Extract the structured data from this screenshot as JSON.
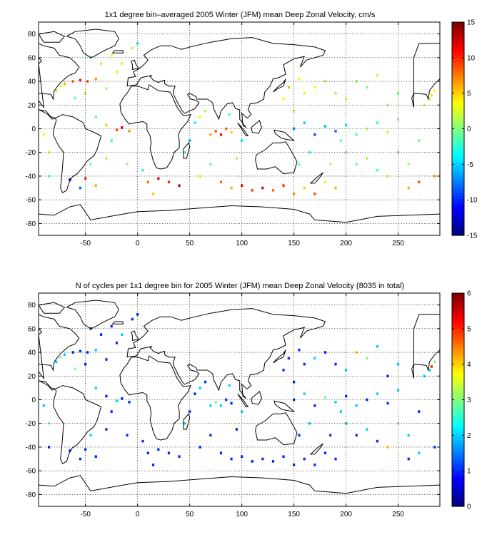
{
  "chart_data": [
    {
      "type": "heatmap",
      "title": "1x1 degree bin–averaged 2005 Winter (JFM) mean Deep Zonal Velocity, cm/s",
      "xlim": [
        -95,
        290
      ],
      "ylim": [
        -90,
        90
      ],
      "x_ticks": [
        "-50",
        "0",
        "50",
        "100",
        "150",
        "200",
        "250"
      ],
      "y_ticks": [
        "80",
        "60",
        "40",
        "20",
        "0",
        "-20",
        "-40",
        "-60",
        "-80"
      ],
      "grid": true,
      "colorbar": {
        "min": -15,
        "max": 15,
        "colormap": "jet",
        "ticks": [
          "15",
          "10",
          "5",
          "0",
          "-5",
          "-10",
          "-15"
        ]
      },
      "cells": [
        {
          "lon": -78,
          "lat": 32,
          "v": 1.5
        },
        {
          "lon": -74,
          "lat": 36,
          "v": 3.0
        },
        {
          "lon": -70,
          "lat": 38,
          "v": 6.0
        },
        {
          "lon": -62,
          "lat": 40,
          "v": 8.0
        },
        {
          "lon": -55,
          "lat": 41,
          "v": 11.0
        },
        {
          "lon": -48,
          "lat": 40,
          "v": 9.0
        },
        {
          "lon": -40,
          "lat": 42,
          "v": 7.0
        },
        {
          "lon": -60,
          "lat": 26,
          "v": -1.0
        },
        {
          "lon": -50,
          "lat": 30,
          "v": 2.0
        },
        {
          "lon": -30,
          "lat": 34,
          "v": 1.0
        },
        {
          "lon": -20,
          "lat": 48,
          "v": 4.0
        },
        {
          "lon": -15,
          "lat": 55,
          "v": 2.5
        },
        {
          "lon": -35,
          "lat": 55,
          "v": 1.5
        },
        {
          "lon": -45,
          "lat": 60,
          "v": -2.0
        },
        {
          "lon": -25,
          "lat": 62,
          "v": 3.0
        },
        {
          "lon": -5,
          "lat": 68,
          "v": 1.0
        },
        {
          "lon": 0,
          "lat": 72,
          "v": -3.0
        },
        {
          "lon": -40,
          "lat": 10,
          "v": -1.5
        },
        {
          "lon": -30,
          "lat": 3,
          "v": 5.0
        },
        {
          "lon": -20,
          "lat": -1,
          "v": 9.0
        },
        {
          "lon": -15,
          "lat": 1,
          "v": 12.0
        },
        {
          "lon": -8,
          "lat": -2,
          "v": 7.0
        },
        {
          "lon": -25,
          "lat": -10,
          "v": -2.0
        },
        {
          "lon": -30,
          "lat": -25,
          "v": 1.0
        },
        {
          "lon": -45,
          "lat": -30,
          "v": -1.0
        },
        {
          "lon": -50,
          "lat": -42,
          "v": 10.0
        },
        {
          "lon": -40,
          "lat": -48,
          "v": 6.0
        },
        {
          "lon": -55,
          "lat": -50,
          "v": -8.0
        },
        {
          "lon": -65,
          "lat": -43,
          "v": -12.0
        },
        {
          "lon": -85,
          "lat": -20,
          "v": 2.0
        },
        {
          "lon": -85,
          "lat": -40,
          "v": -1.0
        },
        {
          "lon": -90,
          "lat": -5,
          "v": 4.0
        },
        {
          "lon": -10,
          "lat": -30,
          "v": 0.5
        },
        {
          "lon": 5,
          "lat": -35,
          "v": -3.0
        },
        {
          "lon": 10,
          "lat": -45,
          "v": 8.0
        },
        {
          "lon": 20,
          "lat": -42,
          "v": 12.0
        },
        {
          "lon": 30,
          "lat": -45,
          "v": 10.0
        },
        {
          "lon": 40,
          "lat": -48,
          "v": 13.0
        },
        {
          "lon": 15,
          "lat": -55,
          "v": 5.0
        },
        {
          "lon": 45,
          "lat": -20,
          "v": -1.0
        },
        {
          "lon": 50,
          "lat": -10,
          "v": -6.0
        },
        {
          "lon": 55,
          "lat": 5,
          "v": -4.0
        },
        {
          "lon": 60,
          "lat": 10,
          "v": 3.0
        },
        {
          "lon": 65,
          "lat": 15,
          "v": 1.0
        },
        {
          "lon": 70,
          "lat": -5,
          "v": 6.0
        },
        {
          "lon": 75,
          "lat": -2,
          "v": 9.0
        },
        {
          "lon": 80,
          "lat": -5,
          "v": 11.0
        },
        {
          "lon": 85,
          "lat": 0,
          "v": 8.0
        },
        {
          "lon": 90,
          "lat": -3,
          "v": 5.0
        },
        {
          "lon": 88,
          "lat": 12,
          "v": -2.0
        },
        {
          "lon": 70,
          "lat": -30,
          "v": -1.0
        },
        {
          "lon": 60,
          "lat": -40,
          "v": 4.0
        },
        {
          "lon": 80,
          "lat": -45,
          "v": 8.0
        },
        {
          "lon": 90,
          "lat": -50,
          "v": 6.0
        },
        {
          "lon": 100,
          "lat": -48,
          "v": 11.0
        },
        {
          "lon": 110,
          "lat": -52,
          "v": 9.0
        },
        {
          "lon": 120,
          "lat": -50,
          "v": 12.0
        },
        {
          "lon": 95,
          "lat": -25,
          "v": 1.0
        },
        {
          "lon": 100,
          "lat": -10,
          "v": -4.0
        },
        {
          "lon": 130,
          "lat": -52,
          "v": 8.0
        },
        {
          "lon": 140,
          "lat": -48,
          "v": 10.0
        },
        {
          "lon": 150,
          "lat": -55,
          "v": 7.0
        },
        {
          "lon": 160,
          "lat": -50,
          "v": 5.0
        },
        {
          "lon": 170,
          "lat": -55,
          "v": 9.0
        },
        {
          "lon": 180,
          "lat": -45,
          "v": 2.0
        },
        {
          "lon": 190,
          "lat": -50,
          "v": 6.0
        },
        {
          "lon": 155,
          "lat": -30,
          "v": -1.0
        },
        {
          "lon": 165,
          "lat": -20,
          "v": -3.0
        },
        {
          "lon": 150,
          "lat": 0,
          "v": -7.0
        },
        {
          "lon": 160,
          "lat": 5,
          "v": -5.0
        },
        {
          "lon": 170,
          "lat": -5,
          "v": -9.0
        },
        {
          "lon": 180,
          "lat": 2,
          "v": -6.0
        },
        {
          "lon": 190,
          "lat": -2,
          "v": -8.0
        },
        {
          "lon": 200,
          "lat": 3,
          "v": -4.0
        },
        {
          "lon": 210,
          "lat": -5,
          "v": -2.0
        },
        {
          "lon": 220,
          "lat": 0,
          "v": 1.0
        },
        {
          "lon": 230,
          "lat": 5,
          "v": -3.0
        },
        {
          "lon": 240,
          "lat": -3,
          "v": 2.0
        },
        {
          "lon": 250,
          "lat": 8,
          "v": 0.5
        },
        {
          "lon": 160,
          "lat": 30,
          "v": 2.0
        },
        {
          "lon": 170,
          "lat": 35,
          "v": 3.0
        },
        {
          "lon": 180,
          "lat": 40,
          "v": 1.5
        },
        {
          "lon": 190,
          "lat": 30,
          "v": 0.5
        },
        {
          "lon": 200,
          "lat": 25,
          "v": 2.5
        },
        {
          "lon": 210,
          "lat": 40,
          "v": 1.0
        },
        {
          "lon": 220,
          "lat": 35,
          "v": -0.5
        },
        {
          "lon": 230,
          "lat": 45,
          "v": 2.0
        },
        {
          "lon": 240,
          "lat": 20,
          "v": 1.0
        },
        {
          "lon": 250,
          "lat": 30,
          "v": 0.0
        },
        {
          "lon": 150,
          "lat": 15,
          "v": 1.0
        },
        {
          "lon": 140,
          "lat": 25,
          "v": 4.0
        },
        {
          "lon": 145,
          "lat": 35,
          "v": 6.0
        },
        {
          "lon": 155,
          "lat": 42,
          "v": 3.0
        },
        {
          "lon": 200,
          "lat": -20,
          "v": 0.5
        },
        {
          "lon": 210,
          "lat": -30,
          "v": -1.0
        },
        {
          "lon": 220,
          "lat": -25,
          "v": 1.0
        },
        {
          "lon": 230,
          "lat": -35,
          "v": -2.0
        },
        {
          "lon": 240,
          "lat": -40,
          "v": 1.5
        },
        {
          "lon": 250,
          "lat": -20,
          "v": 0.0
        },
        {
          "lon": 260,
          "lat": -30,
          "v": 1.0
        },
        {
          "lon": 270,
          "lat": -10,
          "v": -1.0
        },
        {
          "lon": 275,
          "lat": 20,
          "v": 2.0
        },
        {
          "lon": 282,
          "lat": 28,
          "v": 5.0
        },
        {
          "lon": 285,
          "lat": 32,
          "v": 4.0
        },
        {
          "lon": 280,
          "lat": 25,
          "v": 2.0
        },
        {
          "lon": 285,
          "lat": -40,
          "v": 7.0
        },
        {
          "lon": 270,
          "lat": -45,
          "v": 9.0
        },
        {
          "lon": 260,
          "lat": -50,
          "v": 6.0
        },
        {
          "lon": 185,
          "lat": -30,
          "v": 1.0
        },
        {
          "lon": 195,
          "lat": -10,
          "v": -1.0
        }
      ]
    },
    {
      "type": "heatmap",
      "title": "N of cycles per 1x1 degree bin for 2005 Winter (JFM) mean Deep Zonal Velocity (8035 in total)",
      "xlim": [
        -95,
        290
      ],
      "ylim": [
        -90,
        90
      ],
      "x_ticks": [
        "-50",
        "0",
        "50",
        "100",
        "150",
        "200",
        "250"
      ],
      "y_ticks": [
        "80",
        "60",
        "40",
        "20",
        "0",
        "-20",
        "-40",
        "-60",
        "-80"
      ],
      "grid": true,
      "colorbar": {
        "min": 0,
        "max": 6,
        "colormap": "jet",
        "ticks": [
          "6",
          "5",
          "4",
          "3",
          "2",
          "1",
          "0"
        ]
      },
      "cells": [
        {
          "lon": -78,
          "lat": 32,
          "v": 2
        },
        {
          "lon": -74,
          "lat": 36,
          "v": 3
        },
        {
          "lon": -70,
          "lat": 38,
          "v": 2
        },
        {
          "lon": -62,
          "lat": 40,
          "v": 1
        },
        {
          "lon": -55,
          "lat": 41,
          "v": 1
        },
        {
          "lon": -48,
          "lat": 40,
          "v": 1
        },
        {
          "lon": -40,
          "lat": 42,
          "v": 2
        },
        {
          "lon": -60,
          "lat": 26,
          "v": 3
        },
        {
          "lon": -50,
          "lat": 30,
          "v": 1
        },
        {
          "lon": -30,
          "lat": 34,
          "v": 1
        },
        {
          "lon": -20,
          "lat": 48,
          "v": 1
        },
        {
          "lon": -15,
          "lat": 55,
          "v": 2
        },
        {
          "lon": -35,
          "lat": 55,
          "v": 1
        },
        {
          "lon": -45,
          "lat": 60,
          "v": 1
        },
        {
          "lon": -25,
          "lat": 62,
          "v": 1
        },
        {
          "lon": -5,
          "lat": 68,
          "v": 1
        },
        {
          "lon": 0,
          "lat": 72,
          "v": 1
        },
        {
          "lon": -40,
          "lat": 10,
          "v": 2
        },
        {
          "lon": -30,
          "lat": 3,
          "v": 1
        },
        {
          "lon": -20,
          "lat": -1,
          "v": 2
        },
        {
          "lon": -15,
          "lat": 1,
          "v": 1
        },
        {
          "lon": -8,
          "lat": -2,
          "v": 1
        },
        {
          "lon": -25,
          "lat": -10,
          "v": 1
        },
        {
          "lon": -30,
          "lat": -25,
          "v": 1
        },
        {
          "lon": -45,
          "lat": -30,
          "v": 2
        },
        {
          "lon": -50,
          "lat": -42,
          "v": 1
        },
        {
          "lon": -40,
          "lat": -48,
          "v": 1
        },
        {
          "lon": -55,
          "lat": -50,
          "v": 1
        },
        {
          "lon": -65,
          "lat": -43,
          "v": 1
        },
        {
          "lon": -85,
          "lat": -20,
          "v": 3
        },
        {
          "lon": -85,
          "lat": -40,
          "v": 1
        },
        {
          "lon": -90,
          "lat": -5,
          "v": 2
        },
        {
          "lon": -10,
          "lat": -30,
          "v": 1
        },
        {
          "lon": 5,
          "lat": -35,
          "v": 1
        },
        {
          "lon": 10,
          "lat": -45,
          "v": 1
        },
        {
          "lon": 20,
          "lat": -42,
          "v": 1
        },
        {
          "lon": 30,
          "lat": -45,
          "v": 1
        },
        {
          "lon": 40,
          "lat": -48,
          "v": 1
        },
        {
          "lon": 15,
          "lat": -55,
          "v": 1
        },
        {
          "lon": 45,
          "lat": -20,
          "v": 2
        },
        {
          "lon": 50,
          "lat": -10,
          "v": 1
        },
        {
          "lon": 55,
          "lat": 5,
          "v": 1
        },
        {
          "lon": 60,
          "lat": 10,
          "v": 2
        },
        {
          "lon": 65,
          "lat": 15,
          "v": 1
        },
        {
          "lon": 70,
          "lat": -5,
          "v": 2
        },
        {
          "lon": 75,
          "lat": -2,
          "v": 3
        },
        {
          "lon": 80,
          "lat": -5,
          "v": 2
        },
        {
          "lon": 85,
          "lat": 0,
          "v": 1
        },
        {
          "lon": 90,
          "lat": -3,
          "v": 1
        },
        {
          "lon": 88,
          "lat": 12,
          "v": 2
        },
        {
          "lon": 70,
          "lat": -30,
          "v": 1
        },
        {
          "lon": 60,
          "lat": -40,
          "v": 1
        },
        {
          "lon": 80,
          "lat": -45,
          "v": 1
        },
        {
          "lon": 90,
          "lat": -50,
          "v": 1
        },
        {
          "lon": 100,
          "lat": -48,
          "v": 1
        },
        {
          "lon": 110,
          "lat": -52,
          "v": 1
        },
        {
          "lon": 120,
          "lat": -50,
          "v": 1
        },
        {
          "lon": 95,
          "lat": -25,
          "v": 1
        },
        {
          "lon": 100,
          "lat": -10,
          "v": 2
        },
        {
          "lon": 130,
          "lat": -52,
          "v": 1
        },
        {
          "lon": 140,
          "lat": -48,
          "v": 1
        },
        {
          "lon": 150,
          "lat": -55,
          "v": 1
        },
        {
          "lon": 160,
          "lat": -50,
          "v": 1
        },
        {
          "lon": 170,
          "lat": -55,
          "v": 1
        },
        {
          "lon": 180,
          "lat": -45,
          "v": 1
        },
        {
          "lon": 190,
          "lat": -50,
          "v": 1
        },
        {
          "lon": 155,
          "lat": -30,
          "v": 1
        },
        {
          "lon": 165,
          "lat": -20,
          "v": 2
        },
        {
          "lon": 150,
          "lat": 0,
          "v": 1
        },
        {
          "lon": 160,
          "lat": 5,
          "v": 2
        },
        {
          "lon": 170,
          "lat": -5,
          "v": 1
        },
        {
          "lon": 180,
          "lat": 2,
          "v": 3
        },
        {
          "lon": 190,
          "lat": -2,
          "v": 2
        },
        {
          "lon": 200,
          "lat": 3,
          "v": 1
        },
        {
          "lon": 210,
          "lat": -5,
          "v": 2
        },
        {
          "lon": 220,
          "lat": 0,
          "v": 1
        },
        {
          "lon": 230,
          "lat": 5,
          "v": 2
        },
        {
          "lon": 240,
          "lat": -3,
          "v": 1
        },
        {
          "lon": 250,
          "lat": 8,
          "v": 2
        },
        {
          "lon": 160,
          "lat": 30,
          "v": 1
        },
        {
          "lon": 170,
          "lat": 35,
          "v": 2
        },
        {
          "lon": 180,
          "lat": 40,
          "v": 1
        },
        {
          "lon": 190,
          "lat": 30,
          "v": 1
        },
        {
          "lon": 200,
          "lat": 25,
          "v": 2
        },
        {
          "lon": 210,
          "lat": 40,
          "v": 4
        },
        {
          "lon": 220,
          "lat": 35,
          "v": 3
        },
        {
          "lon": 230,
          "lat": 45,
          "v": 2
        },
        {
          "lon": 240,
          "lat": 20,
          "v": 1
        },
        {
          "lon": 250,
          "lat": 30,
          "v": 2
        },
        {
          "lon": 150,
          "lat": 15,
          "v": 1
        },
        {
          "lon": 140,
          "lat": 25,
          "v": 1
        },
        {
          "lon": 145,
          "lat": 35,
          "v": 1
        },
        {
          "lon": 155,
          "lat": 42,
          "v": 1
        },
        {
          "lon": 200,
          "lat": -20,
          "v": 2
        },
        {
          "lon": 210,
          "lat": -30,
          "v": 1
        },
        {
          "lon": 220,
          "lat": -25,
          "v": 2
        },
        {
          "lon": 230,
          "lat": -35,
          "v": 1
        },
        {
          "lon": 240,
          "lat": -40,
          "v": 4
        },
        {
          "lon": 250,
          "lat": -20,
          "v": 3
        },
        {
          "lon": 260,
          "lat": -30,
          "v": 2
        },
        {
          "lon": 270,
          "lat": -10,
          "v": 1
        },
        {
          "lon": 275,
          "lat": 20,
          "v": 2
        },
        {
          "lon": 282,
          "lat": 28,
          "v": 5
        },
        {
          "lon": 285,
          "lat": 32,
          "v": 3
        },
        {
          "lon": 280,
          "lat": 25,
          "v": 2
        },
        {
          "lon": 285,
          "lat": -40,
          "v": 1
        },
        {
          "lon": 270,
          "lat": -45,
          "v": 2
        },
        {
          "lon": 260,
          "lat": -50,
          "v": 1
        },
        {
          "lon": 185,
          "lat": -30,
          "v": 1
        },
        {
          "lon": 195,
          "lat": -10,
          "v": 2
        }
      ]
    }
  ]
}
